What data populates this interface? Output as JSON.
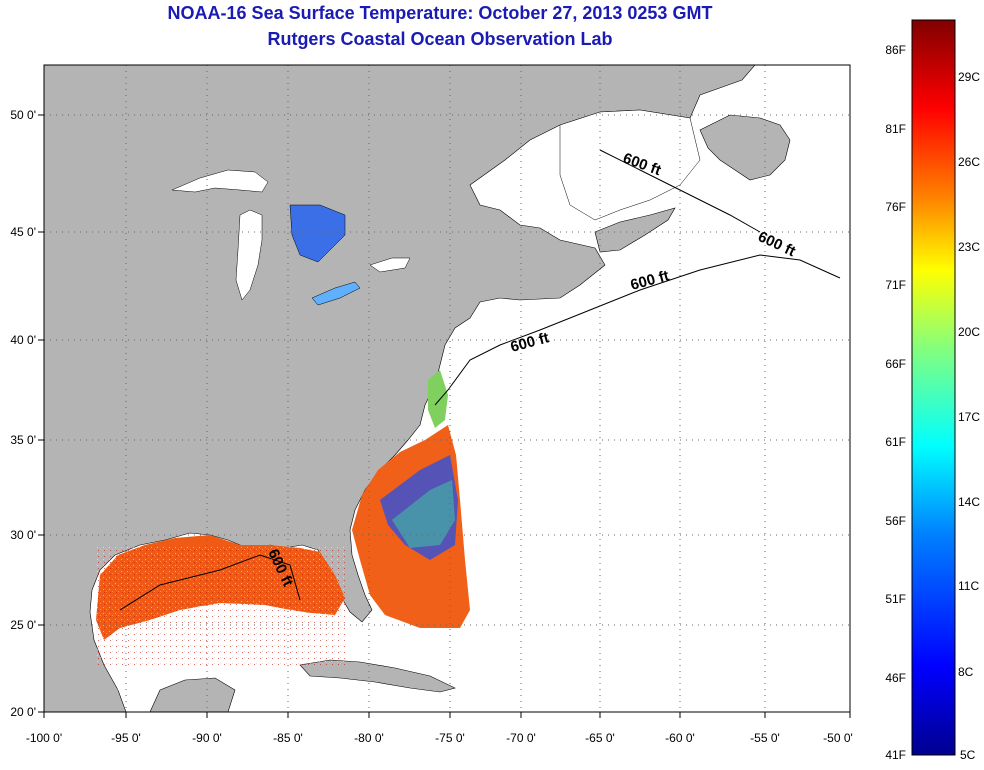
{
  "header": {
    "title": "NOAA-16 Sea Surface Temperature:  October 27, 2013 0253 GMT",
    "subtitle": "Rutgers Coastal Ocean Observation Lab"
  },
  "map": {
    "lon_range": [
      -100,
      -50
    ],
    "lat_range": [
      20,
      52.5
    ],
    "lon_ticks": [
      "-100 0'",
      "-95 0'",
      "-90 0'",
      "-85 0'",
      "-80 0'",
      "-75 0'",
      "-70 0'",
      "-65 0'",
      "-60 0'",
      "-55 0'",
      "-50 0'"
    ],
    "lat_ticks": [
      "20 0'",
      "25 0'",
      "30 0'",
      "35 0'",
      "40 0'",
      "45 0'",
      "50 0'"
    ],
    "contour_labels": [
      "600 ft",
      "600 ft",
      "600 ft",
      "600 ft",
      "600 ft"
    ],
    "grid": "dotted",
    "land_color": "#b4b4b4"
  },
  "colorbar": {
    "f_labels": [
      "41F",
      "46F",
      "51F",
      "56F",
      "61F",
      "66F",
      "71F",
      "76F",
      "81F",
      "86F"
    ],
    "c_labels": [
      "5C",
      "8C",
      "11C",
      "14C",
      "17C",
      "20C",
      "23C",
      "26C",
      "29C"
    ],
    "colors": [
      "#00008f",
      "#0000ff",
      "#0080ff",
      "#00ffff",
      "#80ff80",
      "#ffff00",
      "#ff8000",
      "#ff0000",
      "#800000"
    ]
  }
}
